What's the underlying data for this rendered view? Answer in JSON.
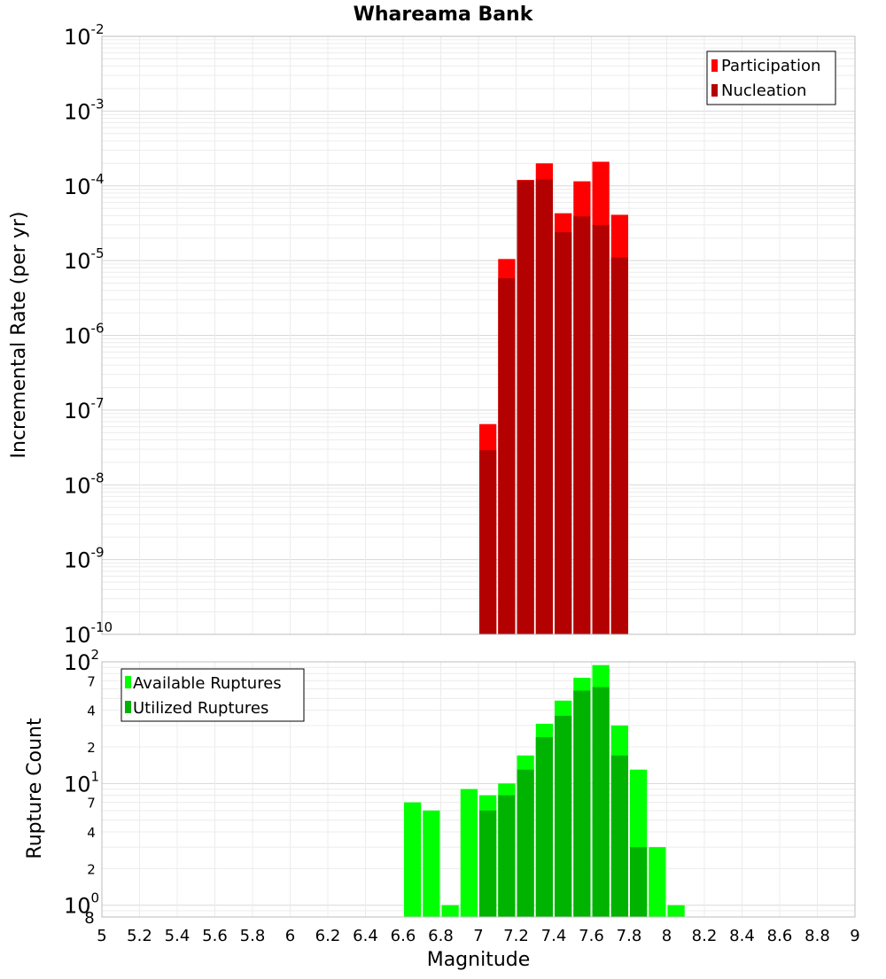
{
  "chart_data": [
    {
      "type": "bar",
      "title": "Whareama Bank",
      "xlabel": "Magnitude",
      "ylabel": "Incremental Rate (per yr)",
      "yscale": "log",
      "xlim": [
        5,
        9
      ],
      "ylim": [
        1e-10,
        0.01
      ],
      "y_tick_exponents": [
        "-2",
        "-3",
        "-4",
        "-5",
        "-6",
        "-7",
        "-8",
        "-9",
        "-10"
      ],
      "grid": true,
      "legend_position": "top-right",
      "x": [
        7.0,
        7.1,
        7.2,
        7.3,
        7.4,
        7.5,
        7.6,
        7.7
      ],
      "series": [
        {
          "name": "Participation",
          "color": "#ff0000",
          "values": [
            6.5e-08,
            1.05e-05,
            0.00012,
            0.0002,
            4.3e-05,
            0.000115,
            0.00021,
            4.1e-05
          ]
        },
        {
          "name": "Nucleation",
          "color": "#b30000",
          "values": [
            2.9e-08,
            5.8e-06,
            0.000118,
            0.000122,
            2.4e-05,
            3.9e-05,
            3e-05,
            1.1e-05
          ]
        }
      ]
    },
    {
      "type": "bar",
      "title": "",
      "xlabel": "Magnitude",
      "ylabel": "Rupture Count",
      "yscale": "log",
      "xlim": [
        5,
        9
      ],
      "ylim": [
        0.8,
        100
      ],
      "y_major_exponents": [
        "2",
        "1",
        "0"
      ],
      "y_minor_labels": [
        "7",
        "4",
        "2",
        "7",
        "4",
        "2"
      ],
      "x_bottom_label": "8",
      "grid": true,
      "legend_position": "top-left",
      "x_ticks": [
        "5",
        "5.2",
        "5.4",
        "5.6",
        "5.8",
        "6",
        "6.2",
        "6.4",
        "6.6",
        "6.8",
        "7",
        "7.2",
        "7.4",
        "7.6",
        "7.8",
        "8",
        "8.2",
        "8.4",
        "8.6",
        "8.8",
        "9"
      ],
      "x": [
        6.6,
        6.7,
        6.8,
        6.9,
        7.0,
        7.1,
        7.2,
        7.3,
        7.4,
        7.5,
        7.6,
        7.7,
        7.8,
        7.9,
        8.0
      ],
      "series": [
        {
          "name": "Available Ruptures",
          "color": "#00ff00",
          "values": [
            7,
            6,
            1,
            9,
            8,
            10,
            17,
            31,
            48,
            74,
            94,
            30,
            13,
            3,
            1
          ]
        },
        {
          "name": "Utilized Ruptures",
          "color": "#00b300",
          "values": [
            0,
            0,
            0,
            0,
            6,
            8,
            13,
            24,
            36,
            58,
            62,
            17,
            3,
            0,
            0
          ]
        }
      ]
    }
  ]
}
